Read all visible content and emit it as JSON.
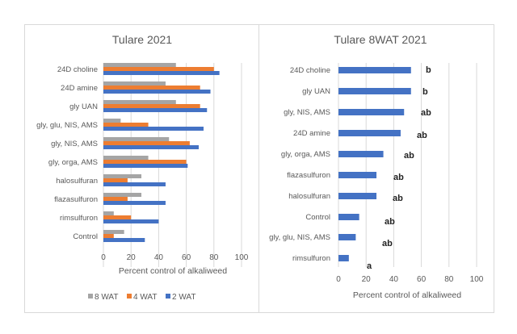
{
  "chart_data": [
    {
      "type": "bar",
      "orientation": "horizontal",
      "title": "Tulare 2021",
      "xlabel": "Percent control of alkaliweed",
      "ylabel": "",
      "xlim": [
        0,
        100
      ],
      "xticks": [
        "0",
        "20",
        "40",
        "60",
        "80",
        "100"
      ],
      "grid": true,
      "legend": "bottom",
      "categories": [
        "24D choline",
        "24D amine",
        "gly UAN",
        "gly, glu, NIS, AMS",
        "gly, NIS, AMS",
        "gly, orga, AMS",
        "halosulfuran",
        "flazasulfuron",
        "rimsulfuron",
        "Control"
      ],
      "series": [
        {
          "name": "8 WAT",
          "color": "#a5a5a5",
          "values": [
            52.5,
            45,
            52.5,
            12.5,
            47.5,
            32.5,
            27.5,
            27.5,
            7.5,
            15
          ]
        },
        {
          "name": "4 WAT",
          "color": "#ed7d31",
          "values": [
            80,
            70,
            70,
            32.5,
            62.5,
            60,
            17.5,
            17.5,
            20,
            7.5
          ]
        },
        {
          "name": "2 WAT",
          "color": "#4472c4",
          "values": [
            84,
            77.5,
            75,
            72.5,
            69,
            61,
            45,
            45,
            40,
            30
          ]
        }
      ]
    },
    {
      "type": "bar",
      "orientation": "horizontal",
      "title": "Tulare 8WAT 2021",
      "xlabel": "Percent control of alkaliweed",
      "ylabel": "",
      "xlim": [
        0,
        100
      ],
      "xticks": [
        "0",
        "20",
        "40",
        "60",
        "80",
        "100"
      ],
      "grid": true,
      "color": "#4472c4",
      "categories": [
        "24D choline",
        "gly UAN",
        "gly, NIS, AMS",
        "24D amine",
        "gly, orga, AMS",
        "flazasulfuron",
        "halosulfuran",
        "Control",
        "gly, glu, NIS, AMS",
        "rimsulfuron"
      ],
      "values": [
        52.5,
        52.5,
        47.5,
        45,
        32.5,
        27.5,
        27.5,
        15,
        12.5,
        7.5
      ],
      "annotations": [
        "b",
        "b",
        "ab",
        "ab",
        "ab",
        "ab",
        "ab",
        "ab",
        "ab",
        "a"
      ]
    }
  ]
}
